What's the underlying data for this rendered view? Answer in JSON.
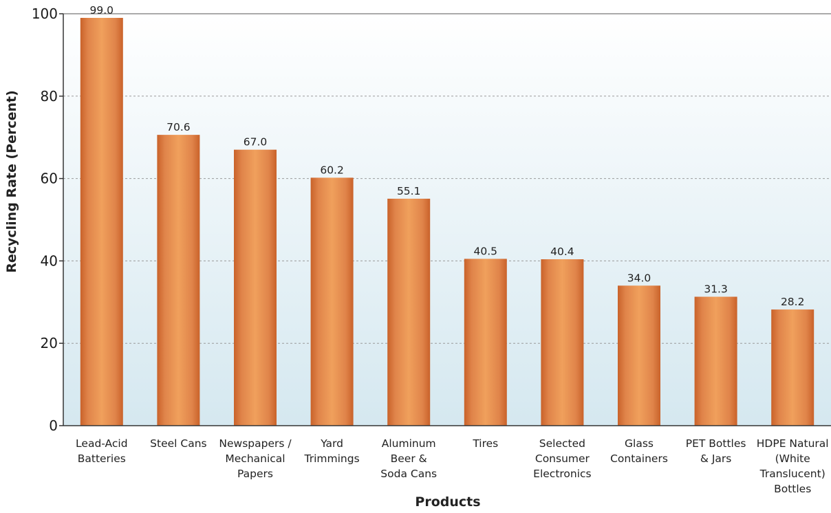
{
  "chart_data": {
    "type": "bar",
    "xlabel": "Products",
    "ylabel": "Recycling Rate (Percent)",
    "ylim": [
      0,
      100
    ],
    "yticks": [
      0,
      20,
      40,
      60,
      80,
      100
    ],
    "grid": true,
    "categories": [
      [
        "Lead-Acid",
        "Batteries"
      ],
      [
        "Steel Cans"
      ],
      [
        "Newspapers /",
        "Mechanical",
        "Papers"
      ],
      [
        "Yard",
        "Trimmings"
      ],
      [
        "Aluminum",
        "Beer &",
        "Soda Cans"
      ],
      [
        "Tires"
      ],
      [
        "Selected",
        "Consumer",
        "Electronics"
      ],
      [
        "Glass",
        "Containers"
      ],
      [
        "PET Bottles",
        "& Jars"
      ],
      [
        "HDPE Natural",
        "(White",
        "Translucent)",
        "Bottles"
      ]
    ],
    "values": [
      99.0,
      70.6,
      67.0,
      60.2,
      55.1,
      40.5,
      40.4,
      34.0,
      31.3,
      28.2
    ],
    "value_labels": [
      "99.0",
      "70.6",
      "67.0",
      "60.2",
      "55.1",
      "40.5",
      "40.4",
      "34.0",
      "31.3",
      "28.2"
    ],
    "colors": {
      "bar_center": "#f0a05c",
      "bar_edge": "#c9622a",
      "plot_top": "#ffffff",
      "plot_bottom": "#d5e8f0"
    }
  }
}
